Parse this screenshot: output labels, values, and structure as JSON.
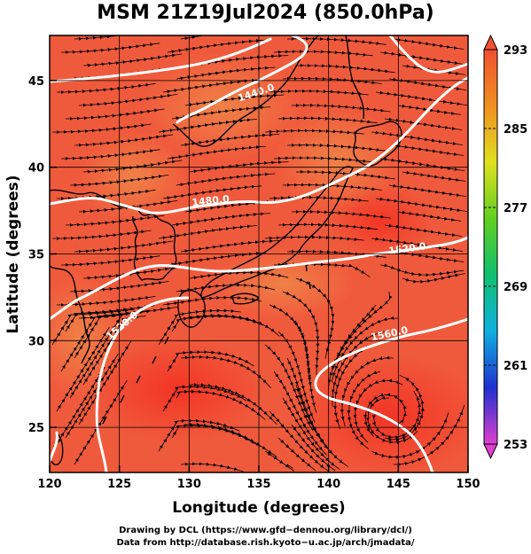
{
  "title": "MSM 21Z19Jul2024 (850.0hPa)",
  "axes": {
    "x": {
      "label": "Longitude (degrees)",
      "range": [
        120,
        150
      ],
      "ticks": [
        "120",
        "125",
        "130",
        "135",
        "140",
        "145",
        "150"
      ]
    },
    "y": {
      "label": "Latitude  (degrees)",
      "range": [
        22.4,
        47.6
      ],
      "ticks": [
        "25",
        "30",
        "35",
        "40",
        "45"
      ]
    }
  },
  "colorbar": {
    "range": [
      253,
      293
    ],
    "labels": [
      "293",
      "285",
      "277",
      "269",
      "261",
      "253"
    ],
    "colors": [
      "#e040d0",
      "#2030d0",
      "#10b0e0",
      "#10c070",
      "#60d020",
      "#e0e020",
      "#f09020",
      "#f05030"
    ]
  },
  "contours": [
    {
      "label": "1440.0"
    },
    {
      "label": "1480.0"
    },
    {
      "label": "1520.0"
    },
    {
      "label": "1560.0"
    },
    {
      "label": "1520.0"
    }
  ],
  "colors": {
    "field_base": "#f05a3c",
    "field_warm": "#f53f2a",
    "field_cool": "#ef7845",
    "contour": "#ffffff",
    "coast": "#000000",
    "stream": "#000000"
  },
  "footer": {
    "line1": "Drawing by DCL (https://www.gfd−dennou.org/library/dcl/)",
    "line2": "Data from http://database.rish.kyoto−u.ac.jp/arch/jmadata/"
  }
}
